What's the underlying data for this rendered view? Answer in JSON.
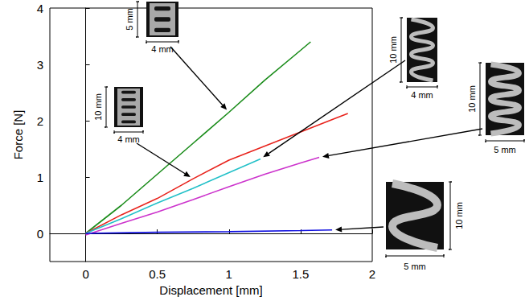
{
  "chart_data": {
    "type": "line",
    "x_label": "Displacement [mm]",
    "y_label": "Force [N]",
    "xlim": [
      -0.25,
      2
    ],
    "xticks": [
      0,
      0.5,
      1,
      1.5,
      2
    ],
    "ylim": [
      -0.5,
      4
    ],
    "yticks": [
      0,
      1,
      2,
      3,
      4
    ],
    "grid": false,
    "series": [
      {
        "color": "#1a8c1a",
        "x": [
          0,
          0.25,
          0.5,
          0.75,
          1,
          1.25,
          1.5,
          1.57
        ],
        "values": [
          0,
          0.5,
          1.05,
          1.6,
          2.15,
          2.72,
          3.25,
          3.4
        ]
      },
      {
        "color": "#e8231c",
        "x": [
          0,
          0.25,
          0.5,
          0.75,
          1,
          1.25,
          1.5,
          1.75,
          1.83
        ],
        "values": [
          0,
          0.33,
          0.62,
          0.97,
          1.3,
          1.55,
          1.8,
          2.05,
          2.13
        ]
      },
      {
        "color": "#22c0c8",
        "x": [
          0,
          0.25,
          0.5,
          0.75,
          1,
          1.22
        ],
        "values": [
          0,
          0.26,
          0.54,
          0.8,
          1.08,
          1.32
        ]
      },
      {
        "color": "#cc33cc",
        "x": [
          0,
          0.25,
          0.5,
          0.75,
          1,
          1.25,
          1.5,
          1.63
        ],
        "values": [
          -0.03,
          0.18,
          0.38,
          0.6,
          0.83,
          1.05,
          1.25,
          1.35
        ]
      },
      {
        "color": "#1010e0",
        "x": [
          0,
          0.5,
          1,
          1.5,
          1.72
        ],
        "values": [
          0,
          0.02,
          0.03,
          0.05,
          0.06
        ]
      }
    ],
    "annotations": [
      {
        "height": "5 mm",
        "width": "4 mm"
      },
      {
        "height": "10 mm",
        "width": "4 mm"
      },
      {
        "height": "10 mm",
        "width": "4 mm"
      },
      {
        "height": "10 mm",
        "width": "5 mm"
      },
      {
        "height": "10 mm",
        "width": "5 mm"
      }
    ]
  }
}
